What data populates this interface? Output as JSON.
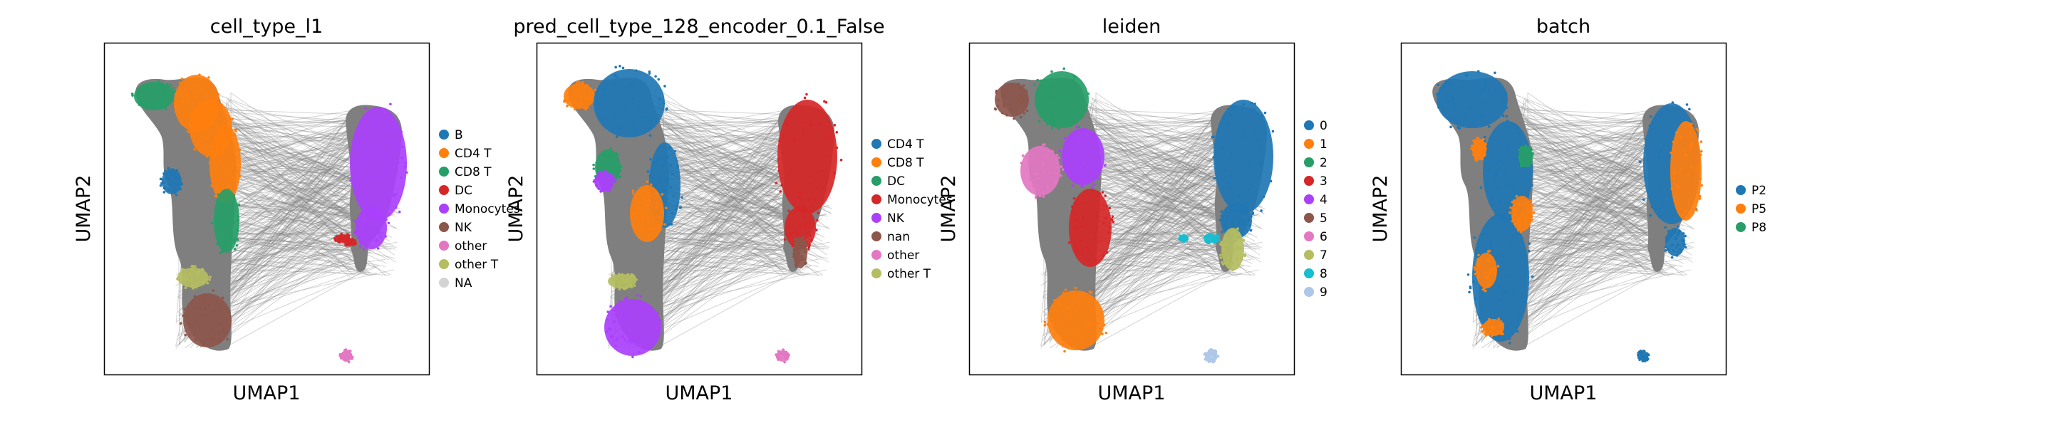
{
  "chart_data": [
    {
      "type": "scatter",
      "title": "cell_type_l1",
      "xlabel": "UMAP1",
      "ylabel": "UMAP2",
      "legend": "right",
      "grid": false,
      "categories": [
        {
          "name": "B",
          "color": "#1f77b4"
        },
        {
          "name": "CD4 T",
          "color": "#ff7f0e"
        },
        {
          "name": "CD8 T",
          "color": "#279e68"
        },
        {
          "name": "DC",
          "color": "#d62728"
        },
        {
          "name": "Monocytes",
          "color": "#aa40fc"
        },
        {
          "name": "NK",
          "color": "#8c564b"
        },
        {
          "name": "other",
          "color": "#e377c2"
        },
        {
          "name": "other T",
          "color": "#b5bd61"
        },
        {
          "name": "NA",
          "color": "#d3d3d3"
        }
      ]
    },
    {
      "type": "scatter",
      "title": "pred_cell_type_128_encoder_0.1_False",
      "xlabel": "UMAP1",
      "ylabel": "UMAP2",
      "legend": "right",
      "grid": false,
      "categories": [
        {
          "name": "CD4 T",
          "color": "#1f77b4"
        },
        {
          "name": "CD8 T",
          "color": "#ff7f0e"
        },
        {
          "name": "DC",
          "color": "#279e68"
        },
        {
          "name": "Monocytes",
          "color": "#d62728"
        },
        {
          "name": "NK",
          "color": "#aa40fc"
        },
        {
          "name": "nan",
          "color": "#8c564b"
        },
        {
          "name": "other",
          "color": "#e377c2"
        },
        {
          "name": "other T",
          "color": "#b5bd61"
        }
      ]
    },
    {
      "type": "scatter",
      "title": "leiden",
      "xlabel": "UMAP1",
      "ylabel": "UMAP2",
      "legend": "right",
      "grid": false,
      "categories": [
        {
          "name": "0",
          "color": "#1f77b4"
        },
        {
          "name": "1",
          "color": "#ff7f0e"
        },
        {
          "name": "2",
          "color": "#279e68"
        },
        {
          "name": "3",
          "color": "#d62728"
        },
        {
          "name": "4",
          "color": "#aa40fc"
        },
        {
          "name": "5",
          "color": "#8c564b"
        },
        {
          "name": "6",
          "color": "#e377c2"
        },
        {
          "name": "7",
          "color": "#b5bd61"
        },
        {
          "name": "8",
          "color": "#17becf"
        },
        {
          "name": "9",
          "color": "#aec7e8"
        }
      ]
    },
    {
      "type": "scatter",
      "title": "batch",
      "xlabel": "UMAP1",
      "ylabel": "UMAP2",
      "legend": "right",
      "grid": false,
      "categories": [
        {
          "name": "P2",
          "color": "#1f77b4"
        },
        {
          "name": "P5",
          "color": "#ff7f0e"
        },
        {
          "name": "P8",
          "color": "#279e68"
        }
      ]
    }
  ]
}
